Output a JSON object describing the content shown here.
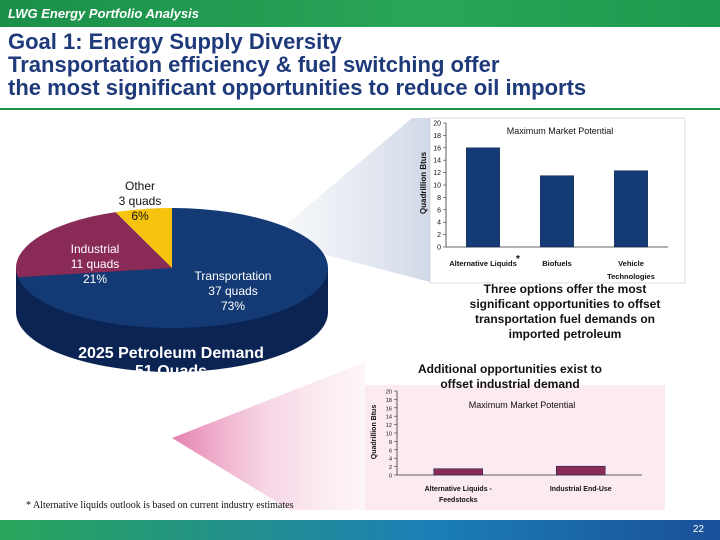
{
  "header": {
    "title": "LWG Energy Portfolio Analysis"
  },
  "slide": {
    "title_lines": [
      "Goal 1: Energy Supply Diversity",
      "Transportation efficiency & fuel switching offer",
      "the most significant opportunities to reduce oil imports"
    ],
    "caption_top": [
      "Three options offer the most",
      "significant opportunities to offset",
      "transportation fuel demands on",
      "imported petroleum"
    ],
    "caption_mid": [
      "Additional opportunities exist to",
      "offset industrial demand"
    ],
    "footnote": "* Alternative liquids outlook is based on current industry estimates",
    "page_number": "22"
  },
  "colors": {
    "navy": "#143a75",
    "maroon": "#8a2b57",
    "yellow": "#f6c40f",
    "green": "#1b8f49"
  },
  "chart_data": [
    {
      "type": "pie",
      "title": "2025 Petroleum Demand",
      "subtitle": "51 Quads",
      "slices": [
        {
          "name": "Transportation",
          "value": 37,
          "unit": "quads",
          "percent": "73%",
          "color": "#143a75"
        },
        {
          "name": "Industrial",
          "value": 11,
          "unit": "quads",
          "percent": "21%",
          "color": "#8a2b57"
        },
        {
          "name": "Other",
          "value": 3,
          "unit": "quads",
          "percent": "6%",
          "color": "#f6c40f"
        }
      ]
    },
    {
      "type": "bar",
      "title": "Maximum Market Potential",
      "ylabel": "Quadrillion Btus",
      "ylim": [
        0,
        20
      ],
      "yticks": [
        0,
        2,
        4,
        6,
        8,
        10,
        12,
        14,
        16,
        18,
        20
      ],
      "categories": [
        "Alternative Liquids",
        "Biofuels",
        "Vehicle Technologies"
      ],
      "values": [
        16,
        11.5,
        12.3
      ],
      "annotation": "*",
      "color": "#143a75"
    },
    {
      "type": "bar",
      "title": "Maximum Market Potential",
      "ylabel": "Quadrillion Btus",
      "ylim": [
        0,
        20
      ],
      "yticks": [
        0,
        2,
        4,
        6,
        8,
        10,
        12,
        14,
        16,
        18,
        20
      ],
      "categories": [
        "Alternative Liquids - Feedstocks",
        "Industrial End-Use"
      ],
      "values": [
        1.5,
        2.1
      ],
      "color": "#8a2b57"
    }
  ]
}
